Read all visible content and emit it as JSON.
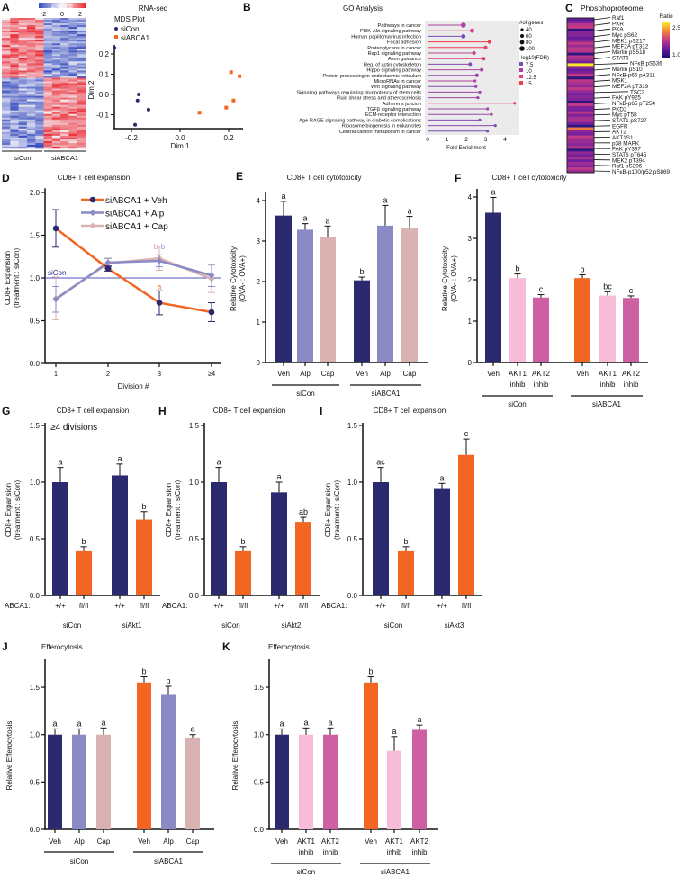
{
  "colors": {
    "navy": "#2b2a6e",
    "periwinkle": "#8a8ac4",
    "rose": "#d9b2b2",
    "orange": "#f26522",
    "lightpink": "#f6bcd8",
    "magenta": "#cd5fa2",
    "siCon_line": "#5050b8"
  },
  "chart_data": [
    {
      "panel": "A",
      "type": "heatmap",
      "colorbar_label": "Z-score",
      "colorbar_ticks": [
        "-2",
        "0",
        "2"
      ],
      "column_groups": [
        "siCon",
        "siABCA1"
      ]
    },
    {
      "panel": "",
      "type": "scatter",
      "title": "RNA-seq",
      "subtitle": "MDS Plot",
      "xlabel": "Dim 1",
      "ylabel": "Dim 2",
      "xticks": [
        -0.2,
        0.0,
        0.2
      ],
      "xtick_labels": [
        "-0.2",
        "0.0",
        "0.2"
      ],
      "yticks": [
        0.2,
        0.1,
        0.0,
        -0.1
      ],
      "ytick_labels": [
        "0.2",
        "0.1",
        "0.0",
        "-0.1"
      ],
      "series": [
        {
          "name": "siCon",
          "points": [
            [
              -0.27,
              0.23
            ],
            [
              -0.17,
              0.0
            ],
            [
              -0.175,
              -0.03
            ],
            [
              -0.13,
              -0.075
            ],
            [
              -0.185,
              -0.15
            ]
          ]
        },
        {
          "name": "siABCA1",
          "points": [
            [
              0.21,
              0.11
            ],
            [
              0.245,
              0.09
            ],
            [
              0.22,
              -0.03
            ],
            [
              0.19,
              -0.065
            ],
            [
              0.08,
              -0.09
            ]
          ]
        }
      ]
    },
    {
      "panel": "B",
      "type": "lollipop",
      "title": "GO Analysis",
      "xlabel": "Fold Enrichment",
      "xticks": [
        "0",
        "1",
        "2",
        "3",
        "4"
      ],
      "terms": [
        "Pathways in cancer",
        "PI3K-Akt signaling pathway",
        "Human papillomavirus infection",
        "Focal adhesion",
        "Proteoglycans in cancer",
        "Rap1 signaling pathway",
        "Axon guidance",
        "Reg. of actin cytoskeleton",
        "Hippo signaling pathway",
        "Protein processing in endoplasmic reticulum",
        "MicroRNAs in cancer",
        "Wnt signaling pathway",
        "Signaling pathways regulating pluripotency of stem cells",
        "Fluid shear stress and atheroscrelosis",
        "Adherens juncion",
        "TGFβ signaling pathway",
        "ECM-receptor interaction",
        "Age-RAGE signaling pathway in diabetic complications",
        "Ribosome biogenesis in eukaryotes",
        "Central carbon metabolism in cancer"
      ],
      "fold_enrichment": [
        1.85,
        2.3,
        1.85,
        3.2,
        3.0,
        2.4,
        2.9,
        2.2,
        2.8,
        2.55,
        2.45,
        2.5,
        2.7,
        2.6,
        4.5,
        3.1,
        3.3,
        2.7,
        3.5,
        3.1
      ],
      "neg_log10_fdr": [
        10,
        12.5,
        7.5,
        15,
        14,
        11,
        12,
        8,
        10,
        9,
        10,
        8,
        9,
        9,
        13,
        9,
        9,
        8,
        8,
        7.5
      ],
      "gene_count": [
        100,
        80,
        80,
        60,
        60,
        60,
        60,
        60,
        60,
        60,
        40,
        40,
        40,
        40,
        40,
        40,
        40,
        40,
        40,
        40
      ],
      "legend_size_title": "#of genes",
      "legend_size": [
        "40",
        "60",
        "80",
        "100"
      ],
      "legend_color_title": "-log10(FDR)",
      "legend_color": [
        "7.5",
        "10",
        "12.5",
        "15"
      ],
      "legend_color_hex": [
        "#7a4cb8",
        "#b0409f",
        "#e0407a",
        "#f03c48"
      ]
    },
    {
      "panel": "C",
      "type": "heatmap",
      "title": "Phosphoproteome",
      "colorbar_label": "Ratio",
      "colorbar_ticks": [
        "2.5",
        "1.0"
      ],
      "rows": [
        "Raf1",
        "PKR",
        "PKA",
        "Myc pS62",
        "MEK1 pS217",
        "MEF2A pT312",
        "Merlin pS518",
        "STAT6",
        "NFκB pS536",
        "Merlin pS10",
        "NFκB-p65 pA311",
        "MSK1",
        "MEF2A pT319",
        "TSC2",
        "FAK pY925",
        "NFκB-p65 pT254",
        "PKD2",
        "Myc pT58",
        "STAT1 pS727",
        "EGFR",
        "AKT2",
        "AKT1S1",
        "p38 MAPK",
        "FAK pY397",
        "STAT6 pT645",
        "MEK2 pT394",
        "Raf1 pS296",
        "NFκB-p100/p52 pS869"
      ]
    },
    {
      "panel": "D",
      "type": "line",
      "title": "CD8+ T cell expansion",
      "xlabel": "Division #",
      "ylabel": [
        "CD8+ Expansion",
        "(treatment : siCon)"
      ],
      "categories": [
        "1",
        "2",
        "3",
        "≥4"
      ],
      "yticks": [
        "0.0",
        "0.5",
        "1.0",
        "1.5",
        "2.0"
      ],
      "ylim": [
        0,
        2
      ],
      "reference": {
        "label": "siCon",
        "value": 1.0
      },
      "series": [
        {
          "name": "siABCA1 + Veh",
          "values": [
            1.58,
            1.11,
            0.71,
            0.6
          ],
          "errors": [
            0.22,
            0.03,
            0.14,
            0.11
          ],
          "color": "orange"
        },
        {
          "name": "siABCA1 + Alp",
          "values": [
            0.75,
            1.18,
            1.2,
            1.03
          ],
          "errors": [
            0.15,
            0.05,
            0.07,
            0.13
          ],
          "color": "periwinkle"
        },
        {
          "name": "siABCA1 + Cap",
          "values": [
            0.76,
            1.17,
            1.23,
            0.99
          ],
          "errors": [
            0.25,
            0.06,
            0.14,
            0.16
          ],
          "color": "rose"
        }
      ],
      "annotations": [
        {
          "text": "b",
          "category": "3",
          "series": "siABCA1 + Cap"
        },
        {
          "text": "b",
          "category": "3",
          "series": "siABCA1 + Alp"
        },
        {
          "text": "a",
          "category": "3",
          "series": "siABCA1 + Veh"
        }
      ]
    },
    {
      "panel": "E",
      "type": "bar",
      "title": "CD8+ T cell cytotoxicity",
      "ylabel": [
        "Relative Cytotoxicity",
        "(OVA- : OVA+)"
      ],
      "ylim": [
        0,
        4
      ],
      "ytick_values": [
        0,
        1,
        2,
        3,
        4
      ],
      "yticks": [
        "0",
        "1",
        "2",
        "3",
        "4"
      ],
      "tick_labels": [
        [
          "Veh"
        ],
        [
          "Alp"
        ],
        [
          "Cap"
        ],
        [
          "Veh"
        ],
        [
          "Alp"
        ],
        [
          "Cap"
        ]
      ],
      "groups": [
        "siCon",
        "siABCA1"
      ],
      "values": [
        3.63,
        3.28,
        3.09,
        2.03,
        3.38,
        3.31
      ],
      "errors": [
        0.35,
        0.15,
        0.28,
        0.08,
        0.5,
        0.3
      ],
      "letters": [
        "a",
        "a",
        "a",
        "b",
        "a",
        "a"
      ],
      "bar_colors": [
        "navy",
        "periwinkle",
        "rose",
        "navy",
        "periwinkle",
        "rose"
      ]
    },
    {
      "panel": "F",
      "type": "bar",
      "title": "CD8+ T cell cytotoxicity",
      "ylabel": [
        "Relative Cytotoxicity",
        "(OVA- : OVA+)"
      ],
      "ylim": [
        0,
        4
      ],
      "ytick_values": [
        0,
        1,
        2,
        3,
        4
      ],
      "yticks": [
        "0",
        "1",
        "2",
        "3",
        "4"
      ],
      "tick_labels": [
        [
          "Veh"
        ],
        [
          "AKT1",
          "inhib"
        ],
        [
          "AKT2",
          "inhib"
        ],
        [
          "Veh"
        ],
        [
          "AKT1",
          "inhib"
        ],
        [
          "AKT2",
          "inhib"
        ]
      ],
      "groups": [
        "siCon",
        "siABCA1"
      ],
      "values": [
        3.62,
        2.04,
        1.57,
        2.04,
        1.62,
        1.56
      ],
      "errors": [
        0.37,
        0.1,
        0.07,
        0.08,
        0.09,
        0.05
      ],
      "letters": [
        "a",
        "b",
        "c",
        "b",
        "bc",
        "c"
      ],
      "bar_colors": [
        "navy",
        "lightpink",
        "magenta",
        "orange",
        "lightpink",
        "magenta"
      ]
    },
    {
      "panel": "G",
      "type": "bar",
      "title": "CD8+ T cell expansion",
      "annotation": "≥4 divisions",
      "ylabel": [
        "CD8+ Expansion",
        "(treatment : siCon)"
      ],
      "ylim": [
        0,
        1.5
      ],
      "ytick_values": [
        0,
        0.5,
        1,
        1.5
      ],
      "yticks": [
        "0.0",
        "0.5",
        "1.0",
        "1.5"
      ],
      "row_label": "ABCA1:",
      "tick_labels": [
        [
          "+/+"
        ],
        [
          "fl/fl"
        ],
        [
          "+/+"
        ],
        [
          "fl/fl"
        ]
      ],
      "groups": [
        "siCon",
        "siAkt1"
      ],
      "values": [
        1.0,
        0.39,
        1.06,
        0.67
      ],
      "errors": [
        0.13,
        0.04,
        0.1,
        0.07
      ],
      "letters": [
        "a",
        "b",
        "a",
        "b"
      ],
      "bar_colors": [
        "navy",
        "orange",
        "navy",
        "orange"
      ]
    },
    {
      "panel": "H",
      "type": "bar",
      "title": "CD8+ T cell expansion",
      "ylabel": [
        "CD8+ Expansion",
        "(treatment : siCon)"
      ],
      "ylim": [
        0,
        1.5
      ],
      "ytick_values": [
        0,
        0.5,
        1,
        1.5
      ],
      "yticks": [
        "0.0",
        "0.5",
        "1.0",
        "1.5"
      ],
      "row_label": "ABCA1:",
      "tick_labels": [
        [
          "+/+"
        ],
        [
          "fl/fl"
        ],
        [
          "+/+"
        ],
        [
          "fl/fl"
        ]
      ],
      "groups": [
        "siCon",
        "siAkt2"
      ],
      "values": [
        1.0,
        0.39,
        0.91,
        0.65
      ],
      "errors": [
        0.13,
        0.04,
        0.09,
        0.04
      ],
      "letters": [
        "a",
        "b",
        "a",
        "ab"
      ],
      "bar_colors": [
        "navy",
        "orange",
        "navy",
        "orange"
      ]
    },
    {
      "panel": "I",
      "type": "bar",
      "title": "CD8+ T cell expansion",
      "ylabel": [
        "CD8+ Expansion",
        "(treatment : siCon)"
      ],
      "ylim": [
        0,
        1.5
      ],
      "ytick_values": [
        0,
        0.5,
        1,
        1.5
      ],
      "yticks": [
        "0.0",
        "0.5",
        "1.0",
        "1.5"
      ],
      "row_label": "ABCA1:",
      "tick_labels": [
        [
          "+/+"
        ],
        [
          "fl/fl"
        ],
        [
          "+/+"
        ],
        [
          "fl/fl"
        ]
      ],
      "groups": [
        "siCon",
        "siAkt3"
      ],
      "values": [
        1.0,
        0.39,
        0.94,
        1.24
      ],
      "errors": [
        0.13,
        0.04,
        0.05,
        0.14
      ],
      "letters": [
        "ac",
        "b",
        "a",
        "c"
      ],
      "bar_colors": [
        "navy",
        "orange",
        "navy",
        "orange"
      ]
    },
    {
      "panel": "J",
      "type": "bar",
      "title": "Efferocytosis",
      "ylabel": [
        "Relative Efferocytosis"
      ],
      "ylim": [
        0,
        1.8
      ],
      "ytick_values": [
        0,
        0.5,
        1,
        1.5
      ],
      "yticks": [
        "0.0",
        "0.5",
        "1.0",
        "1.5"
      ],
      "tick_labels": [
        [
          "Veh"
        ],
        [
          "Alp"
        ],
        [
          "Cap"
        ],
        [
          "Veh"
        ],
        [
          "Alp"
        ],
        [
          "Cap"
        ]
      ],
      "groups": [
        "siCon",
        "siABCA1"
      ],
      "values": [
        1.0,
        1.0,
        1.0,
        1.55,
        1.42,
        0.97
      ],
      "errors": [
        0.06,
        0.06,
        0.07,
        0.06,
        0.09,
        0.03
      ],
      "letters": [
        "a",
        "a",
        "a",
        "b",
        "b",
        "a"
      ],
      "bar_colors": [
        "navy",
        "periwinkle",
        "rose",
        "orange",
        "periwinkle",
        "rose"
      ]
    },
    {
      "panel": "K",
      "type": "bar",
      "title": "Efferocytosis",
      "ylabel": [
        "Relative Efferocytosis"
      ],
      "ylim": [
        0,
        1.8
      ],
      "ytick_values": [
        0,
        0.5,
        1,
        1.5
      ],
      "yticks": [
        "0.0",
        "0.5",
        "1.0",
        "1.5"
      ],
      "tick_labels": [
        [
          "Veh"
        ],
        [
          "AKT1",
          "inhib"
        ],
        [
          "AKT2",
          "inhib"
        ],
        [
          "Veh"
        ],
        [
          "AKT1",
          "inhib"
        ],
        [
          "AKT2",
          "inhib"
        ]
      ],
      "groups": [
        "siCon",
        "siABCA1"
      ],
      "values": [
        1.0,
        1.0,
        1.0,
        1.55,
        0.83,
        1.05
      ],
      "errors": [
        0.06,
        0.07,
        0.07,
        0.06,
        0.15,
        0.05
      ],
      "letters": [
        "a",
        "a",
        "a",
        "b",
        "a",
        "a"
      ],
      "bar_colors": [
        "navy",
        "lightpink",
        "magenta",
        "orange",
        "lightpink",
        "magenta"
      ]
    }
  ]
}
